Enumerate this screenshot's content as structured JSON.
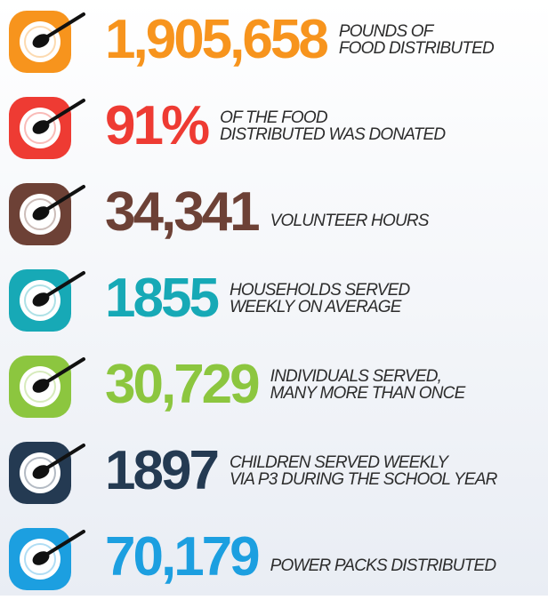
{
  "items": [
    {
      "number": "1,905,658",
      "lines": [
        "POUNDS OF",
        "FOOD DISTRIBUTED"
      ],
      "color": "#f7941d"
    },
    {
      "number": "91%",
      "lines": [
        "OF THE FOOD",
        "DISTRIBUTED WAS DONATED"
      ],
      "color": "#ee3b33"
    },
    {
      "number": "34,341",
      "lines": [
        "VOLUNTEER HOURS"
      ],
      "color": "#6d4136"
    },
    {
      "number": "1855",
      "lines": [
        "HOUSEHOLDS SERVED",
        "WEEKLY ON AVERAGE"
      ],
      "color": "#17a9b6"
    },
    {
      "number": "30,729",
      "lines": [
        "INDIVIDUALS SERVED,",
        "MANY MORE THAN ONCE"
      ],
      "color": "#8cc63f"
    },
    {
      "number": "1897",
      "lines": [
        "CHILDREN SERVED WEEKLY",
        "VIA P3 DURING THE SCHOOL YEAR"
      ],
      "color": "#243a52"
    },
    {
      "number": "70,179",
      "lines": [
        "POWER PACKS DISTRIBUTED"
      ],
      "color": "#1c9fe0"
    }
  ]
}
